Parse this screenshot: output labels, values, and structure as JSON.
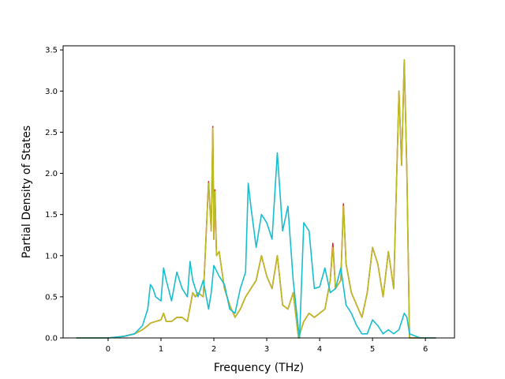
{
  "chart_data": {
    "type": "line",
    "title": "",
    "xlabel": "Frequency (THz)",
    "ylabel": "Partial Density of States",
    "xlim": [
      -0.85,
      6.55
    ],
    "ylim": [
      0.0,
      3.55
    ],
    "xticks": [
      0,
      1,
      2,
      3,
      4,
      5,
      6
    ],
    "yticks": [
      0.0,
      0.5,
      1.0,
      1.5,
      2.0,
      2.5,
      3.0,
      3.5
    ],
    "xtick_labels": [
      "0",
      "1",
      "2",
      "3",
      "4",
      "5",
      "6"
    ],
    "ytick_labels": [
      "0.0",
      "0.5",
      "1.0",
      "1.5",
      "2.0",
      "2.5",
      "3.0",
      "3.5"
    ],
    "grid": false,
    "legend": "none",
    "series": [
      {
        "color": "#d62728",
        "x": [
          -0.6,
          0.0,
          0.3,
          0.5,
          0.65,
          0.75,
          0.8,
          0.9,
          1.0,
          1.05,
          1.1,
          1.2,
          1.3,
          1.4,
          1.5,
          1.6,
          1.65,
          1.7,
          1.8,
          1.9,
          1.95,
          1.98,
          2.0,
          2.02,
          2.05,
          2.1,
          2.2,
          2.3,
          2.4,
          2.5,
          2.6,
          2.7,
          2.8,
          2.9,
          3.0,
          3.1,
          3.2,
          3.3,
          3.4,
          3.5,
          3.6,
          3.7,
          3.8,
          3.9,
          4.0,
          4.1,
          4.2,
          4.25,
          4.3,
          4.4,
          4.45,
          4.5,
          4.6,
          4.7,
          4.8,
          4.9,
          5.0,
          5.1,
          5.2,
          5.3,
          5.4,
          5.5,
          5.55,
          5.6,
          5.65,
          5.7,
          5.75,
          5.9,
          6.2
        ],
        "y": [
          0.0,
          0.0,
          0.02,
          0.05,
          0.1,
          0.15,
          0.18,
          0.2,
          0.22,
          0.3,
          0.2,
          0.2,
          0.25,
          0.25,
          0.2,
          0.55,
          0.5,
          0.55,
          0.5,
          1.9,
          1.3,
          2.57,
          1.2,
          1.8,
          1.0,
          1.05,
          0.6,
          0.4,
          0.25,
          0.35,
          0.5,
          0.6,
          0.7,
          1.0,
          0.75,
          0.6,
          1.0,
          0.4,
          0.35,
          0.55,
          0.0,
          0.2,
          0.3,
          0.25,
          0.3,
          0.35,
          0.7,
          1.15,
          0.6,
          0.7,
          1.63,
          0.9,
          0.55,
          0.4,
          0.25,
          0.55,
          1.1,
          0.9,
          0.5,
          1.05,
          0.6,
          3.0,
          2.1,
          3.38,
          2.0,
          0.0,
          0.0,
          0.0,
          0.0
        ]
      },
      {
        "color": "#bcbd22",
        "x": [
          -0.6,
          0.0,
          0.3,
          0.5,
          0.65,
          0.75,
          0.8,
          0.9,
          1.0,
          1.05,
          1.1,
          1.2,
          1.3,
          1.4,
          1.5,
          1.6,
          1.65,
          1.7,
          1.8,
          1.9,
          1.95,
          1.98,
          2.0,
          2.02,
          2.05,
          2.1,
          2.2,
          2.3,
          2.4,
          2.5,
          2.6,
          2.7,
          2.8,
          2.9,
          3.0,
          3.1,
          3.2,
          3.3,
          3.4,
          3.5,
          3.6,
          3.7,
          3.8,
          3.9,
          4.0,
          4.1,
          4.2,
          4.25,
          4.3,
          4.4,
          4.45,
          4.5,
          4.6,
          4.7,
          4.8,
          4.9,
          5.0,
          5.1,
          5.2,
          5.3,
          5.4,
          5.5,
          5.55,
          5.6,
          5.65,
          5.7,
          5.75,
          5.9,
          6.2
        ],
        "y": [
          0.0,
          0.0,
          0.02,
          0.05,
          0.1,
          0.15,
          0.18,
          0.2,
          0.22,
          0.3,
          0.2,
          0.2,
          0.25,
          0.25,
          0.2,
          0.55,
          0.5,
          0.55,
          0.5,
          1.88,
          1.3,
          2.55,
          1.2,
          1.78,
          1.0,
          1.05,
          0.6,
          0.4,
          0.25,
          0.35,
          0.5,
          0.6,
          0.7,
          1.0,
          0.75,
          0.6,
          1.0,
          0.4,
          0.35,
          0.55,
          0.0,
          0.2,
          0.3,
          0.25,
          0.3,
          0.35,
          0.7,
          1.1,
          0.6,
          0.7,
          1.6,
          0.9,
          0.55,
          0.4,
          0.25,
          0.55,
          1.1,
          0.9,
          0.5,
          1.05,
          0.6,
          3.0,
          2.1,
          3.38,
          2.0,
          0.0,
          0.0,
          0.0,
          0.0
        ]
      },
      {
        "color": "#17becf",
        "x": [
          -0.6,
          0.0,
          0.3,
          0.5,
          0.65,
          0.75,
          0.8,
          0.85,
          0.9,
          1.0,
          1.05,
          1.1,
          1.2,
          1.3,
          1.4,
          1.45,
          1.5,
          1.55,
          1.6,
          1.7,
          1.8,
          1.9,
          1.95,
          2.0,
          2.1,
          2.2,
          2.3,
          2.4,
          2.5,
          2.6,
          2.65,
          2.7,
          2.8,
          2.9,
          3.0,
          3.1,
          3.2,
          3.3,
          3.4,
          3.5,
          3.6,
          3.62,
          3.7,
          3.8,
          3.9,
          4.0,
          4.1,
          4.2,
          4.3,
          4.4,
          4.5,
          4.6,
          4.7,
          4.8,
          4.9,
          5.0,
          5.1,
          5.2,
          5.3,
          5.4,
          5.5,
          5.6,
          5.65,
          5.7,
          5.9,
          6.2
        ],
        "y": [
          0.0,
          0.0,
          0.02,
          0.05,
          0.15,
          0.35,
          0.65,
          0.6,
          0.5,
          0.45,
          0.85,
          0.7,
          0.45,
          0.8,
          0.6,
          0.55,
          0.5,
          0.93,
          0.7,
          0.5,
          0.7,
          0.35,
          0.55,
          0.88,
          0.75,
          0.65,
          0.35,
          0.3,
          0.6,
          0.8,
          1.88,
          1.6,
          1.1,
          1.5,
          1.4,
          1.2,
          2.25,
          1.3,
          1.6,
          0.7,
          0.1,
          0.0,
          1.4,
          1.3,
          0.6,
          0.62,
          0.85,
          0.55,
          0.6,
          0.85,
          0.4,
          0.3,
          0.15,
          0.05,
          0.05,
          0.22,
          0.15,
          0.05,
          0.1,
          0.05,
          0.1,
          0.3,
          0.25,
          0.05,
          0.0,
          0.0
        ]
      }
    ]
  }
}
